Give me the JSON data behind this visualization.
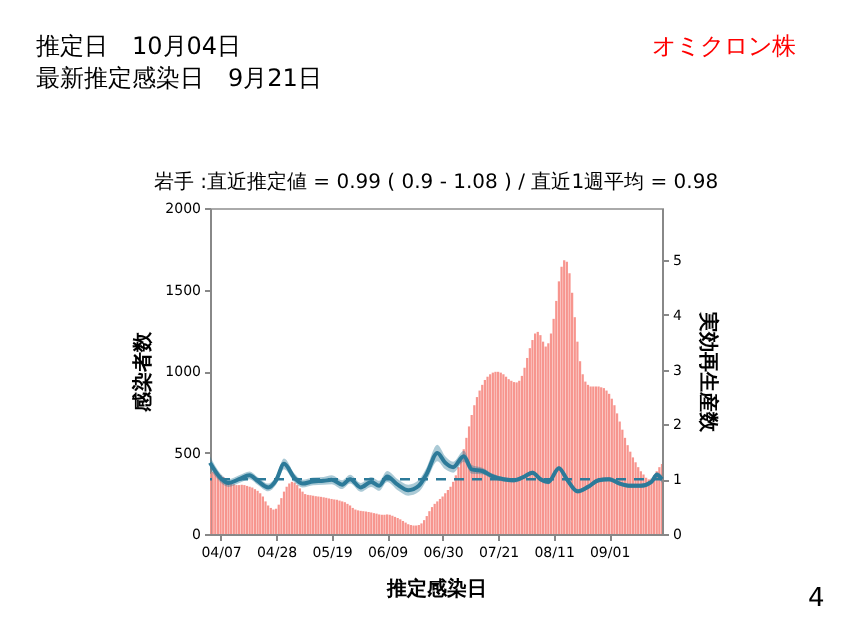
{
  "chart_data": {
    "type": "bar",
    "title": "岩手 :直近推定値 = 0.99 ( 0.9 - 1.08 ) / 直近1週平均 = 0.98",
    "xlabel": "推定感染日",
    "ylabel": "感染者数",
    "y2label": "実効再生産数",
    "annotations": [
      "推定日　10月04日",
      "最新推定感染日　9月21日",
      "オミクロン株",
      "4"
    ],
    "x": [
      "--04-03",
      "--04-04",
      "--04-05",
      "--04-06",
      "--04-07",
      "--04-08",
      "--04-09",
      "--04-10",
      "--04-11",
      "--04-12",
      "--04-13",
      "--04-14",
      "--04-15",
      "--04-16",
      "--04-17",
      "--04-18",
      "--04-19",
      "--04-20",
      "--04-21",
      "--04-22",
      "--04-23",
      "--04-24",
      "--04-25",
      "--04-26",
      "--04-27",
      "--04-28",
      "--04-29",
      "--04-30",
      "--05-01",
      "--05-02",
      "--05-03",
      "--05-04",
      "--05-05",
      "--05-06",
      "--05-07",
      "--05-08",
      "--05-09",
      "--05-10",
      "--05-11",
      "--05-12",
      "--05-13",
      "--05-14",
      "--05-15",
      "--05-16",
      "--05-17",
      "--05-18",
      "--05-19",
      "--05-20",
      "--05-21",
      "--05-22",
      "--05-23",
      "--05-24",
      "--05-25",
      "--05-26",
      "--05-27",
      "--05-28",
      "--05-29",
      "--05-30",
      "--05-31",
      "--06-01",
      "--06-02",
      "--06-03",
      "--06-04",
      "--06-05",
      "--06-06",
      "--06-07",
      "--06-08",
      "--06-09",
      "--06-10",
      "--06-11",
      "--06-12",
      "--06-13",
      "--06-14",
      "--06-15",
      "--06-16",
      "--06-17",
      "--06-18",
      "--06-19",
      "--06-20",
      "--06-21",
      "--06-22",
      "--06-23",
      "--06-24",
      "--06-25",
      "--06-26",
      "--06-27",
      "--06-28",
      "--06-29",
      "--06-30",
      "--07-01",
      "--07-02",
      "--07-03",
      "--07-04",
      "--07-05",
      "--07-06",
      "--07-07",
      "--07-08",
      "--07-09",
      "--07-10",
      "--07-11",
      "--07-12",
      "--07-13",
      "--07-14",
      "--07-15",
      "--07-16",
      "--07-17",
      "--07-18",
      "--07-19",
      "--07-20",
      "--07-21",
      "--07-22",
      "--07-23",
      "--07-24",
      "--07-25",
      "--07-26",
      "--07-27",
      "--07-28",
      "--07-29",
      "--07-30",
      "--07-31",
      "--08-01",
      "--08-02",
      "--08-03",
      "--08-04",
      "--08-05",
      "--08-06",
      "--08-07",
      "--08-08",
      "--08-09",
      "--08-10",
      "--08-11",
      "--08-12",
      "--08-13",
      "--08-14",
      "--08-15",
      "--08-16",
      "--08-17",
      "--08-18",
      "--08-19",
      "--08-20",
      "--08-21",
      "--08-22",
      "--08-23",
      "--08-24",
      "--08-25",
      "--08-26",
      "--08-27",
      "--08-28",
      "--08-29",
      "--08-30",
      "--08-31",
      "--09-01",
      "--09-02",
      "--09-03",
      "--09-04",
      "--09-05",
      "--09-06",
      "--09-07",
      "--09-08",
      "--09-09",
      "--09-10",
      "--09-11",
      "--09-12",
      "--09-13",
      "--09-14",
      "--09-15",
      "--09-16",
      "--09-17",
      "--09-18",
      "--09-19",
      "--09-20",
      "--09-21"
    ],
    "series": [
      {
        "color": "#f7958e",
        "values": [
          370,
          380,
          375,
          370,
          360,
          350,
          335,
          320,
          310,
          305,
          300,
          300,
          302,
          300,
          295,
          290,
          285,
          275,
          265,
          250,
          230,
          200,
          175,
          160,
          150,
          155,
          180,
          220,
          260,
          290,
          310,
          320,
          315,
          300,
          280,
          260,
          245,
          240,
          238,
          235,
          232,
          230,
          228,
          225,
          222,
          218,
          215,
          212,
          210,
          205,
          200,
          195,
          185,
          175,
          160,
          150,
          145,
          142,
          140,
          138,
          135,
          132,
          128,
          125,
          120,
          118,
          118,
          120,
          118,
          112,
          105,
          98,
          90,
          80,
          70,
          60,
          55,
          52,
          52,
          55,
          65,
          85,
          110,
          140,
          165,
          185,
          200,
          215,
          230,
          250,
          270,
          290,
          320,
          360,
          410,
          460,
          520,
          590,
          660,
          730,
          790,
          840,
          880,
          915,
          945,
          965,
          980,
          990,
          995,
          995,
          990,
          980,
          965,
          950,
          940,
          932,
          930,
          940,
          970,
          1020,
          1080,
          1140,
          1190,
          1230,
          1240,
          1220,
          1180,
          1150,
          1170,
          1230,
          1320,
          1430,
          1550,
          1640,
          1680,
          1670,
          1600,
          1480,
          1330,
          1180,
          1060,
          980,
          935,
          915,
          905,
          905,
          905,
          905,
          900,
          895,
          880,
          860,
          830,
          790,
          740,
          690,
          640,
          590,
          545,
          505,
          470,
          440,
          410,
          385,
          365,
          345,
          335,
          340,
          360,
          385,
          410,
          430
        ]
      },
      {
        "type": "line",
        "axis": "y2",
        "color": "#2c7a99",
        "x": [
          "--04-03",
          "--04-07",
          "--04-10",
          "--04-14",
          "--04-18",
          "--04-21",
          "--04-25",
          "--04-28",
          "--05-01",
          "--05-05",
          "--05-08",
          "--05-12",
          "--05-16",
          "--05-19",
          "--05-23",
          "--05-26",
          "--05-30",
          "--06-03",
          "--06-06",
          "--06-09",
          "--06-13",
          "--06-17",
          "--06-21",
          "--06-24",
          "--06-28",
          "--07-01",
          "--07-04",
          "--07-08",
          "--07-11",
          "--07-15",
          "--07-19",
          "--07-23",
          "--07-27",
          "--07-31",
          "--08-03",
          "--08-06",
          "--08-09",
          "--08-13",
          "--08-16",
          "--08-20",
          "--08-24",
          "--08-28",
          "--09-01",
          "--09-05",
          "--09-09",
          "--09-13",
          "--09-17",
          "--09-19",
          "--09-21"
        ],
        "values": [
          1.3,
          1.02,
          0.93,
          1.0,
          1.07,
          0.97,
          0.85,
          0.98,
          1.28,
          1.02,
          0.92,
          0.96,
          0.97,
          0.99,
          0.9,
          1.0,
          0.85,
          0.95,
          0.88,
          1.05,
          0.9,
          0.8,
          0.88,
          1.1,
          1.48,
          1.3,
          1.22,
          1.42,
          1.18,
          1.15,
          1.05,
          1.0,
          0.98,
          1.05,
          1.12,
          1.0,
          0.95,
          1.2,
          1.0,
          0.78,
          0.86,
          0.98,
          1.0,
          0.92,
          0.88,
          0.88,
          0.95,
          1.08,
          1.0
        ],
        "lower": [
          1.18,
          0.94,
          0.86,
          0.93,
          1.0,
          0.9,
          0.78,
          0.9,
          1.18,
          0.94,
          0.85,
          0.89,
          0.9,
          0.91,
          0.82,
          0.92,
          0.77,
          0.86,
          0.79,
          0.95,
          0.8,
          0.7,
          0.77,
          0.98,
          1.33,
          1.18,
          1.12,
          1.32,
          1.1,
          1.09,
          1.0,
          0.96,
          0.94,
          1.01,
          1.08,
          0.96,
          0.91,
          1.16,
          0.96,
          0.74,
          0.82,
          0.94,
          0.96,
          0.88,
          0.84,
          0.84,
          0.91,
          1.03,
          0.93
        ],
        "upper": [
          1.42,
          1.1,
          1.0,
          1.07,
          1.14,
          1.04,
          0.92,
          1.06,
          1.38,
          1.1,
          0.99,
          1.03,
          1.04,
          1.07,
          0.98,
          1.08,
          0.93,
          1.04,
          0.97,
          1.15,
          1.0,
          0.9,
          0.99,
          1.22,
          1.63,
          1.42,
          1.32,
          1.52,
          1.26,
          1.21,
          1.1,
          1.04,
          1.02,
          1.09,
          1.16,
          1.04,
          0.99,
          1.24,
          1.04,
          0.82,
          0.9,
          1.02,
          1.04,
          0.96,
          0.92,
          0.92,
          0.99,
          1.13,
          1.07
        ]
      }
    ],
    "xlim": [
      "--04-03",
      "--09-21"
    ],
    "xticks": [
      {
        "value": "--04-07",
        "label": "04/07"
      },
      {
        "value": "--04-28",
        "label": "04/28"
      },
      {
        "value": "--05-19",
        "label": "05/19"
      },
      {
        "value": "--06-09",
        "label": "06/09"
      },
      {
        "value": "--06-30",
        "label": "06/30"
      },
      {
        "value": "--07-21",
        "label": "07/21"
      },
      {
        "value": "--08-11",
        "label": "08/11"
      },
      {
        "value": "--09-01",
        "label": "09/01"
      }
    ],
    "ylim": [
      0,
      2000
    ],
    "yticks": [
      0,
      500,
      1000,
      1500,
      2000
    ],
    "y2lim": [
      0,
      5.95
    ],
    "y2ticks": [
      0,
      1,
      2,
      3,
      4,
      5
    ],
    "ref_lines": [
      {
        "axis": "y2",
        "value": 1,
        "color": "#2c7a99",
        "line_style": "dashed"
      }
    ]
  }
}
